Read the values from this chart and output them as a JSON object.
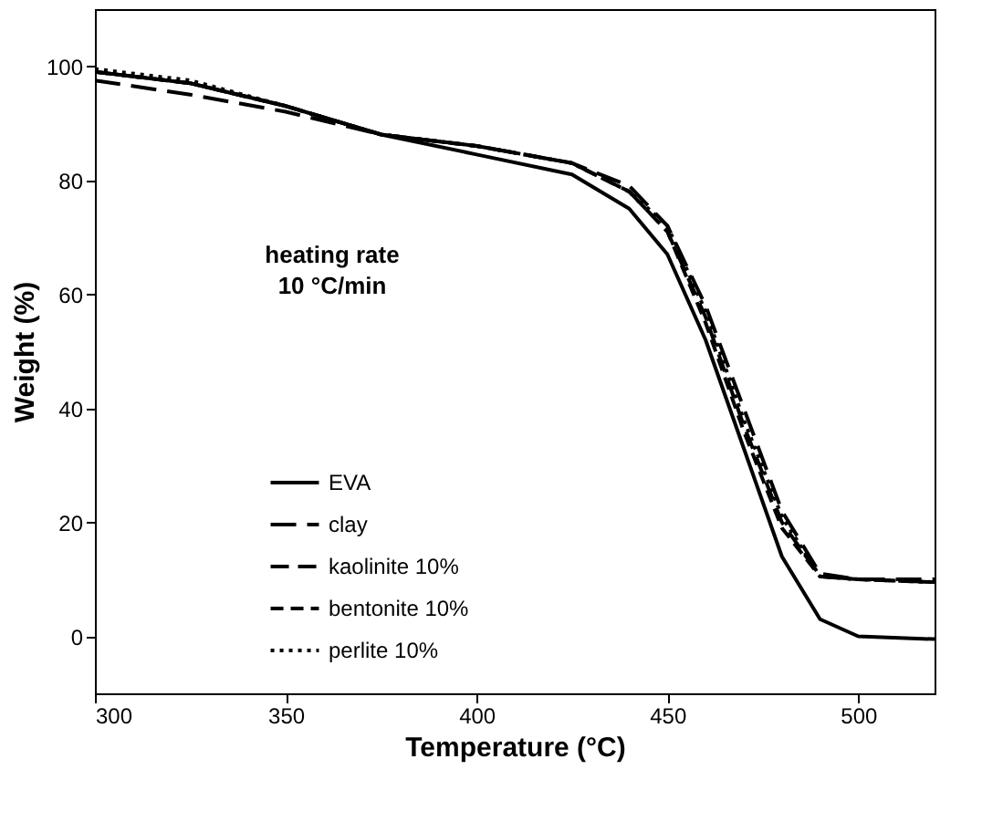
{
  "chart_data": {
    "type": "line",
    "xlabel": "Temperature (°C)",
    "ylabel": "Weight (%)",
    "annotations": [
      {
        "text": "heating rate\n10 °C/min"
      }
    ],
    "x": [
      300,
      325,
      350,
      375,
      400,
      425,
      440,
      450,
      460,
      470,
      480,
      490,
      500,
      520
    ],
    "series": [
      {
        "name": "EVA",
        "color": "#000000",
        "line_style": "solid",
        "values": [
          99,
          97,
          93,
          88,
          84.5,
          81,
          75,
          67,
          52,
          33,
          14,
          3,
          0,
          -0.5
        ]
      },
      {
        "name": "clay",
        "color": "#000000",
        "line_style": "dashed",
        "values": [
          97.5,
          95,
          92,
          88,
          86,
          83,
          79,
          72,
          58,
          40,
          22,
          11,
          10,
          10
        ]
      },
      {
        "name": "kaolinite 10%",
        "color": "#000000",
        "line_style": "dashed",
        "values": [
          99,
          97,
          93,
          88,
          86,
          83,
          78,
          71,
          56,
          37,
          20,
          10.5,
          10,
          9.5
        ]
      },
      {
        "name": "bentonite 10%",
        "color": "#000000",
        "line_style": "dashed",
        "values": [
          99,
          97,
          93,
          88,
          86,
          83,
          78,
          71,
          55,
          36,
          19,
          10.5,
          10,
          9.5
        ]
      },
      {
        "name": "perlite 10%",
        "color": "#000000",
        "line_style": "dotted",
        "values": [
          99.5,
          97.5,
          93,
          88,
          86,
          83,
          78,
          72,
          57,
          38,
          21,
          10.5,
          10,
          9.5
        ]
      }
    ],
    "xlim": [
      300,
      520
    ],
    "xticks": [
      300,
      350,
      400,
      450,
      500
    ],
    "ylim": [
      -10,
      110
    ],
    "yticks": [
      0,
      20,
      40,
      60,
      80,
      100
    ],
    "grid": false,
    "legend": "bottom left",
    "marker": "none"
  }
}
